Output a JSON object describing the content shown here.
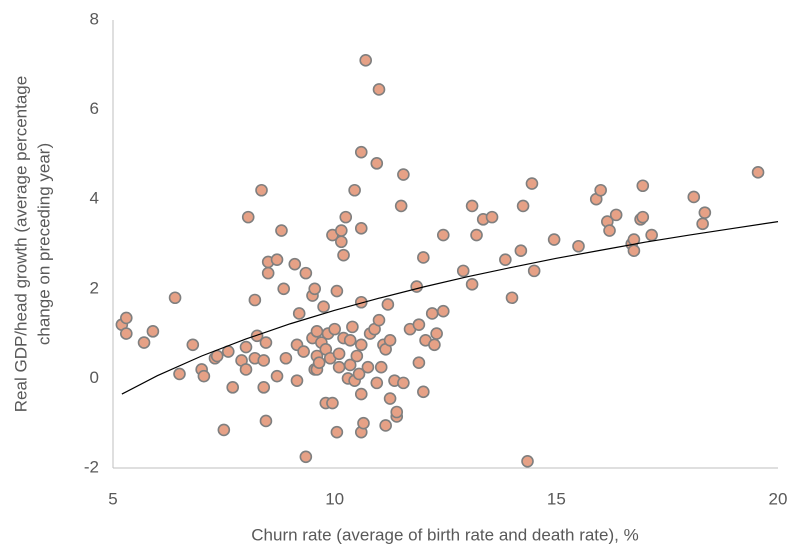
{
  "chart_data": {
    "type": "scatter",
    "x_label": "Churn rate (average of birth rate and death rate), %",
    "y_label": [
      "Real GDP/head growth (average percentage",
      "change on preceding year)"
    ],
    "xlim": [
      5,
      20
    ],
    "xticks": [
      5,
      10,
      15,
      20
    ],
    "ylim": [
      -2,
      8
    ],
    "yticks": [
      -2,
      0,
      2,
      4,
      6,
      8
    ],
    "grid": false,
    "color": "#e6a186",
    "edge_color": "#7f7f7f",
    "x": [
      5.2,
      5.3,
      5.3,
      5.7,
      5.9,
      6.4,
      6.5,
      6.8,
      7.0,
      7.05,
      7.3,
      7.35,
      7.5,
      7.6,
      7.7,
      7.9,
      8.0,
      8.05,
      8.0,
      8.2,
      8.2,
      8.25,
      8.35,
      8.4,
      8.4,
      8.45,
      8.5,
      8.5,
      8.45,
      8.7,
      8.7,
      8.8,
      8.85,
      8.9,
      9.1,
      9.15,
      9.15,
      9.2,
      9.3,
      9.35,
      9.35,
      9.5,
      9.5,
      9.55,
      9.55,
      9.6,
      9.6,
      9.6,
      9.65,
      9.7,
      9.75,
      9.8,
      9.8,
      9.85,
      9.9,
      9.95,
      9.95,
      10.0,
      10.05,
      10.05,
      10.1,
      10.1,
      10.15,
      10.15,
      10.2,
      10.2,
      10.25,
      10.3,
      10.35,
      10.35,
      10.4,
      10.45,
      10.45,
      10.5,
      10.55,
      10.6,
      10.6,
      10.6,
      10.6,
      10.6,
      10.6,
      10.65,
      10.7,
      10.75,
      10.8,
      10.9,
      10.95,
      10.95,
      11.0,
      11.0,
      11.05,
      11.1,
      11.15,
      11.15,
      11.2,
      11.25,
      11.25,
      11.35,
      11.4,
      11.4,
      11.5,
      11.55,
      11.55,
      11.7,
      11.85,
      11.9,
      11.9,
      12.0,
      12.0,
      12.05,
      12.2,
      12.25,
      12.3,
      12.45,
      12.45,
      12.9,
      13.1,
      13.1,
      13.2,
      13.35,
      13.55,
      13.85,
      14.0,
      14.2,
      14.25,
      14.35,
      14.45,
      14.5,
      14.95,
      15.5,
      15.9,
      16.0,
      16.15,
      16.2,
      16.35,
      16.7,
      16.75,
      16.75,
      16.9,
      16.95,
      16.95,
      17.15,
      18.1,
      18.3,
      18.35,
      19.55
    ],
    "values": [
      1.2,
      1.35,
      1.0,
      0.8,
      1.05,
      1.8,
      0.1,
      0.75,
      0.2,
      0.05,
      0.45,
      0.5,
      -1.15,
      0.6,
      -0.2,
      0.4,
      0.7,
      3.6,
      0.2,
      1.75,
      0.45,
      0.95,
      4.2,
      -0.2,
      0.4,
      0.8,
      2.35,
      2.6,
      -0.95,
      2.65,
      0.05,
      3.3,
      2.0,
      0.45,
      2.55,
      0.75,
      -0.05,
      1.45,
      0.6,
      2.35,
      -1.75,
      0.9,
      1.85,
      2.0,
      0.2,
      1.05,
      0.5,
      0.2,
      0.35,
      0.8,
      1.6,
      -0.55,
      0.65,
      1.0,
      0.45,
      3.2,
      -0.55,
      1.1,
      1.95,
      -1.2,
      0.25,
      0.55,
      3.05,
      3.3,
      2.75,
      0.9,
      3.6,
      0.0,
      0.3,
      0.85,
      1.15,
      4.2,
      -0.05,
      0.5,
      0.1,
      5.05,
      3.35,
      1.7,
      0.75,
      -0.35,
      -1.2,
      -1.0,
      7.1,
      0.25,
      1.0,
      1.1,
      4.8,
      -0.1,
      6.45,
      1.3,
      0.25,
      0.75,
      0.65,
      -1.05,
      1.65,
      0.85,
      -0.45,
      -0.05,
      -0.85,
      -0.75,
      3.85,
      4.55,
      -0.1,
      1.1,
      2.05,
      0.35,
      1.2,
      2.7,
      -0.3,
      0.85,
      1.45,
      0.75,
      1.0,
      1.5,
      3.2,
      2.4,
      3.85,
      2.1,
      3.2,
      3.55,
      3.6,
      2.65,
      1.8,
      2.85,
      3.85,
      -1.85,
      4.35,
      2.4,
      3.1,
      2.95,
      4.0,
      4.2,
      3.5,
      3.3,
      3.65,
      3.0,
      2.85,
      3.1,
      3.55,
      4.3,
      3.6,
      3.2,
      4.05,
      3.45,
      3.7,
      4.6
    ],
    "trendline": {
      "color": "#000000",
      "x": [
        5.2,
        6,
        7,
        8,
        9,
        10,
        11,
        12,
        13,
        14,
        15,
        16,
        17,
        18,
        19,
        20
      ],
      "values": [
        -0.35,
        0.06,
        0.5,
        0.88,
        1.22,
        1.52,
        1.79,
        2.04,
        2.27,
        2.48,
        2.68,
        2.86,
        3.04,
        3.2,
        3.35,
        3.5
      ]
    }
  }
}
